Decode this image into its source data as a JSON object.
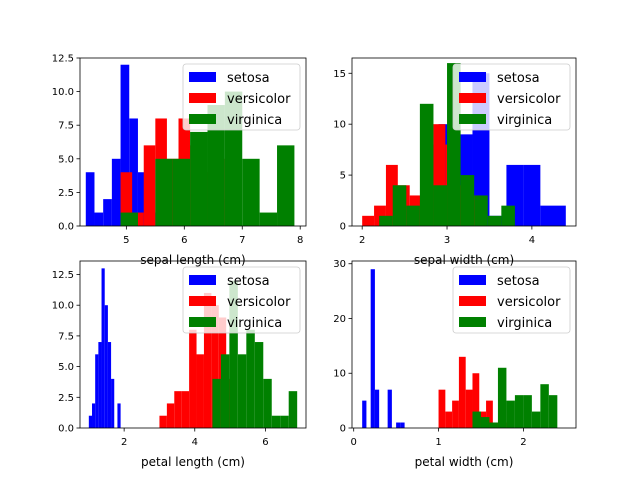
{
  "chart_data": [
    {
      "type": "bar",
      "subtype": "histogram",
      "xlabel": "sepal length (cm)",
      "ylabel": "",
      "xlim": [
        4.2,
        8.1
      ],
      "ylim": [
        0,
        12.5
      ],
      "xticks": [
        5,
        6,
        7,
        8
      ],
      "yticks": [
        0.0,
        2.5,
        5.0,
        7.5,
        10.0,
        12.5
      ],
      "ytick_labels": [
        "0.0",
        "2.5",
        "5.0",
        "7.5",
        "10.0",
        "12.5"
      ],
      "legend_position": "top-right",
      "series": [
        {
          "name": "setosa",
          "color": "#0000ff",
          "bins": [
            [
              4.3,
              4.45,
              4
            ],
            [
              4.45,
              4.6,
              1
            ],
            [
              4.6,
              4.75,
              2
            ],
            [
              4.75,
              4.9,
              5
            ],
            [
              4.9,
              5.05,
              12
            ],
            [
              5.05,
              5.2,
              8
            ],
            [
              5.2,
              5.35,
              4
            ],
            [
              5.35,
              5.5,
              1
            ],
            [
              5.5,
              5.65,
              1
            ],
            [
              5.65,
              5.8,
              1
            ]
          ]
        },
        {
          "name": "versicolor",
          "color": "#ff0000",
          "bins": [
            [
              4.9,
              5.1,
              4
            ],
            [
              5.1,
              5.3,
              1
            ],
            [
              5.3,
              5.5,
              6
            ],
            [
              5.5,
              5.7,
              8
            ],
            [
              5.7,
              5.9,
              5
            ],
            [
              5.9,
              6.1,
              8
            ],
            [
              6.1,
              6.3,
              6
            ],
            [
              6.3,
              6.5,
              4
            ],
            [
              6.5,
              6.7,
              5
            ],
            [
              6.7,
              6.9,
              2
            ]
          ]
        },
        {
          "name": "virginica",
          "color": "#008000",
          "bins": [
            [
              4.9,
              5.2,
              1
            ],
            [
              5.2,
              5.5,
              0
            ],
            [
              5.5,
              5.8,
              5
            ],
            [
              5.8,
              6.1,
              5
            ],
            [
              6.1,
              6.4,
              7
            ],
            [
              6.4,
              6.7,
              9
            ],
            [
              6.7,
              7.0,
              10
            ],
            [
              7.0,
              7.3,
              5
            ],
            [
              7.3,
              7.6,
              1
            ],
            [
              7.6,
              7.9,
              6
            ]
          ]
        }
      ]
    },
    {
      "type": "bar",
      "subtype": "histogram",
      "xlabel": "sepal width (cm)",
      "ylabel": "",
      "xlim": [
        1.88,
        4.52
      ],
      "ylim": [
        0,
        16.5
      ],
      "xticks": [
        2,
        3,
        4
      ],
      "yticks": [
        0,
        5,
        10,
        15
      ],
      "ytick_labels": [
        "0",
        "5",
        "10",
        "15"
      ],
      "legend_position": "top-right",
      "series": [
        {
          "name": "setosa",
          "color": "#0000ff",
          "bins": [
            [
              2.3,
              2.5,
              1
            ],
            [
              2.5,
              2.7,
              0
            ],
            [
              2.7,
              2.9,
              3
            ],
            [
              2.9,
              3.1,
              10
            ],
            [
              3.1,
              3.3,
              9
            ],
            [
              3.3,
              3.5,
              15
            ],
            [
              3.5,
              3.7,
              1
            ],
            [
              3.7,
              3.9,
              6
            ],
            [
              3.9,
              4.1,
              6
            ],
            [
              4.1,
              4.4,
              2
            ]
          ]
        },
        {
          "name": "versicolor",
          "color": "#ff0000",
          "bins": [
            [
              2.0,
              2.14,
              1
            ],
            [
              2.14,
              2.28,
              2
            ],
            [
              2.28,
              2.42,
              6
            ],
            [
              2.42,
              2.56,
              4
            ],
            [
              2.56,
              2.7,
              3
            ],
            [
              2.7,
              2.84,
              8
            ],
            [
              2.84,
              2.98,
              10
            ],
            [
              2.98,
              3.12,
              8
            ],
            [
              3.12,
              3.26,
              4
            ],
            [
              3.26,
              3.4,
              3
            ]
          ]
        },
        {
          "name": "virginica",
          "color": "#008000",
          "bins": [
            [
              2.2,
              2.36,
              1
            ],
            [
              2.36,
              2.52,
              4
            ],
            [
              2.52,
              2.68,
              2
            ],
            [
              2.68,
              2.84,
              12
            ],
            [
              2.84,
              3.0,
              4
            ],
            [
              3.0,
              3.16,
              16
            ],
            [
              3.16,
              3.32,
              5
            ],
            [
              3.32,
              3.48,
              3
            ],
            [
              3.48,
              3.64,
              1
            ],
            [
              3.64,
              3.8,
              2
            ]
          ]
        }
      ]
    },
    {
      "type": "bar",
      "subtype": "histogram",
      "xlabel": "petal length (cm)",
      "ylabel": "",
      "xlim": [
        0.75,
        7.15
      ],
      "ylim": [
        0,
        13.6
      ],
      "xticks": [
        2,
        4,
        6
      ],
      "yticks": [
        0.0,
        2.5,
        5.0,
        7.5,
        10.0,
        12.5
      ],
      "ytick_labels": [
        "0.0",
        "2.5",
        "5.0",
        "7.5",
        "10.0",
        "12.5"
      ],
      "legend_position": "top-right",
      "series": [
        {
          "name": "setosa",
          "color": "#0000ff",
          "bins": [
            [
              1.0,
              1.09,
              1
            ],
            [
              1.09,
              1.18,
              2
            ],
            [
              1.18,
              1.27,
              6
            ],
            [
              1.27,
              1.36,
              7
            ],
            [
              1.36,
              1.45,
              13
            ],
            [
              1.45,
              1.54,
              10
            ],
            [
              1.54,
              1.63,
              7
            ],
            [
              1.63,
              1.72,
              4
            ],
            [
              1.72,
              1.81,
              0
            ],
            [
              1.81,
              1.9,
              2
            ]
          ]
        },
        {
          "name": "versicolor",
          "color": "#ff0000",
          "bins": [
            [
              3.0,
              3.21,
              1
            ],
            [
              3.21,
              3.42,
              2
            ],
            [
              3.42,
              3.63,
              3
            ],
            [
              3.63,
              3.84,
              3
            ],
            [
              3.84,
              4.05,
              8
            ],
            [
              4.05,
              4.26,
              6
            ],
            [
              4.26,
              4.47,
              11
            ],
            [
              4.47,
              4.68,
              10
            ],
            [
              4.68,
              4.89,
              9
            ],
            [
              4.89,
              5.1,
              4
            ]
          ]
        },
        {
          "name": "virginica",
          "color": "#008000",
          "bins": [
            [
              4.5,
              4.74,
              4
            ],
            [
              4.74,
              4.98,
              6
            ],
            [
              4.98,
              5.22,
              12
            ],
            [
              5.22,
              5.46,
              6
            ],
            [
              5.46,
              5.7,
              8
            ],
            [
              5.7,
              5.94,
              7
            ],
            [
              5.94,
              6.18,
              4
            ],
            [
              6.18,
              6.42,
              1
            ],
            [
              6.42,
              6.66,
              1
            ],
            [
              6.66,
              6.9,
              3
            ]
          ]
        }
      ]
    },
    {
      "type": "bar",
      "subtype": "histogram",
      "xlabel": "petal width (cm)",
      "ylabel": "",
      "xlim": [
        -0.02,
        2.62
      ],
      "ylim": [
        0,
        30.5
      ],
      "xticks": [
        0,
        1,
        2
      ],
      "yticks": [
        0,
        10,
        20,
        30
      ],
      "ytick_labels": [
        "0",
        "10",
        "20",
        "30"
      ],
      "legend_position": "top-right",
      "series": [
        {
          "name": "setosa",
          "color": "#0000ff",
          "bins": [
            [
              0.1,
              0.15,
              5
            ],
            [
              0.15,
              0.2,
              0
            ],
            [
              0.2,
              0.25,
              29
            ],
            [
              0.25,
              0.3,
              7
            ],
            [
              0.3,
              0.35,
              0
            ],
            [
              0.35,
              0.4,
              0
            ],
            [
              0.4,
              0.45,
              7
            ],
            [
              0.45,
              0.5,
              0
            ],
            [
              0.5,
              0.55,
              1
            ],
            [
              0.55,
              0.6,
              1
            ]
          ]
        },
        {
          "name": "versicolor",
          "color": "#ff0000",
          "bins": [
            [
              1.0,
              1.08,
              7
            ],
            [
              1.08,
              1.16,
              3
            ],
            [
              1.16,
              1.24,
              5
            ],
            [
              1.24,
              1.32,
              13
            ],
            [
              1.32,
              1.4,
              7
            ],
            [
              1.4,
              1.48,
              10
            ],
            [
              1.48,
              1.56,
              3
            ],
            [
              1.56,
              1.64,
              5
            ],
            [
              1.64,
              1.72,
              1
            ],
            [
              1.72,
              1.8,
              1
            ]
          ]
        },
        {
          "name": "virginica",
          "color": "#008000",
          "bins": [
            [
              1.4,
              1.5,
              3
            ],
            [
              1.5,
              1.6,
              2
            ],
            [
              1.6,
              1.7,
              1
            ],
            [
              1.7,
              1.8,
              11
            ],
            [
              1.8,
              1.9,
              5
            ],
            [
              1.9,
              2.0,
              6
            ],
            [
              2.0,
              2.1,
              6
            ],
            [
              2.1,
              2.2,
              3
            ],
            [
              2.2,
              2.3,
              8
            ],
            [
              2.3,
              2.4,
              6
            ]
          ]
        }
      ]
    }
  ]
}
